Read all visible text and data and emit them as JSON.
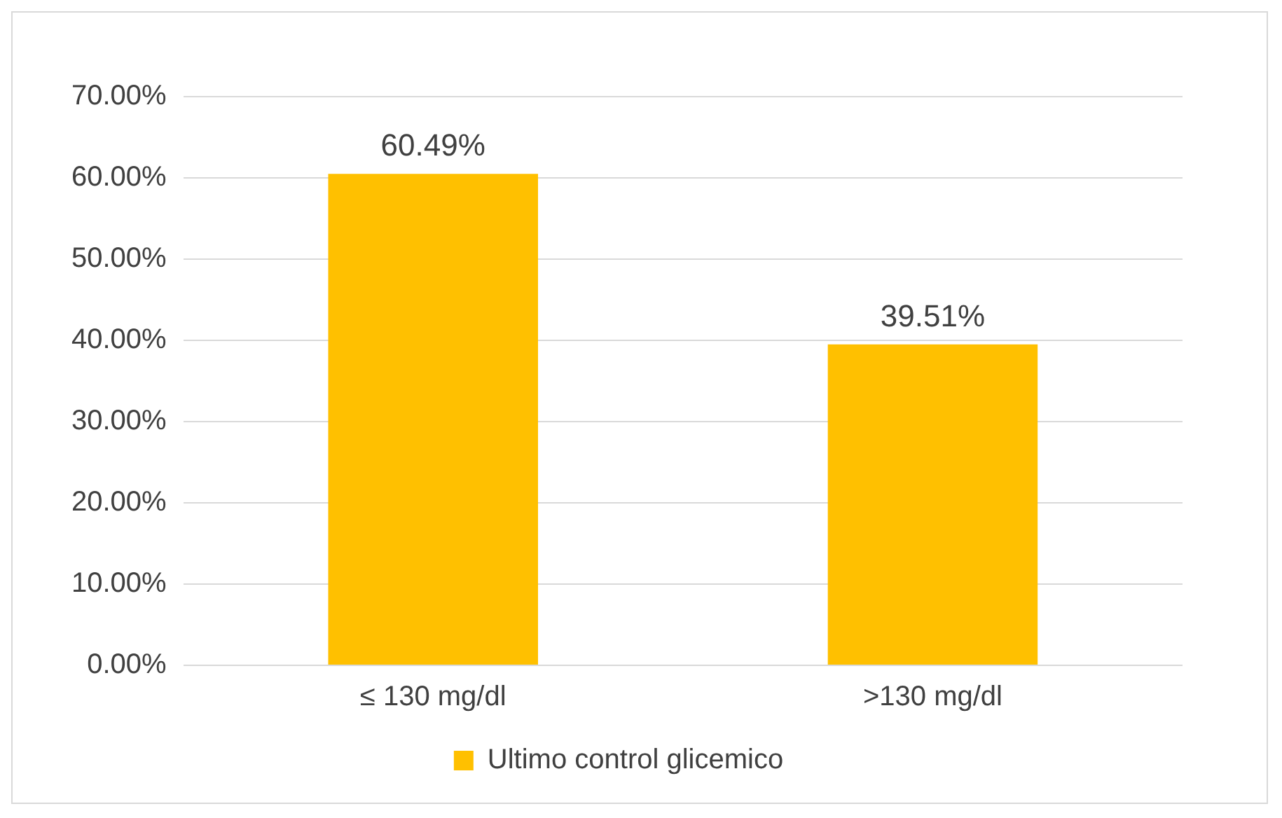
{
  "chart_data": {
    "type": "bar",
    "categories": [
      "≤ 130 mg/dl",
      ">130 mg/dl"
    ],
    "series": [
      {
        "name": "Ultimo control glicemico",
        "color": "#ffc000",
        "values": [
          60.49,
          39.51
        ],
        "value_labels": [
          "60.49%",
          "39.51%"
        ]
      }
    ],
    "ylim": [
      0,
      70
    ],
    "yticks": [
      {
        "value": 0,
        "label": "0.00%"
      },
      {
        "value": 10,
        "label": "10.00%"
      },
      {
        "value": 20,
        "label": "20.00%"
      },
      {
        "value": 30,
        "label": "30.00%"
      },
      {
        "value": 40,
        "label": "40.00%"
      },
      {
        "value": 50,
        "label": "50.00%"
      },
      {
        "value": 60,
        "label": "60.00%"
      },
      {
        "value": 70,
        "label": "70.00%"
      }
    ],
    "grid": "y",
    "legend": "bottom"
  }
}
